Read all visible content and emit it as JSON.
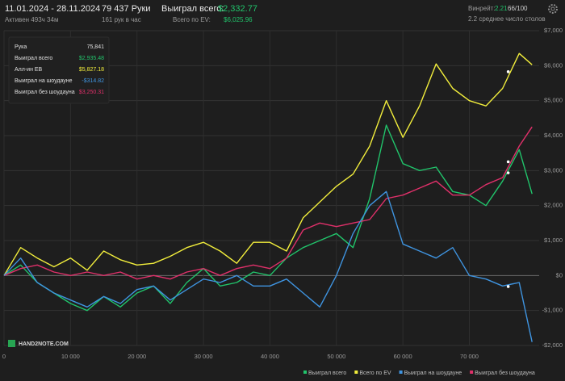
{
  "header": {
    "period": "11.01.2024 - 28.11.2024",
    "active": "Активен 493ч 34м",
    "hands": "79 437 Руки",
    "rate": "161 рук в час",
    "won_label": "Выиграл всего:",
    "won_value": "$2,332.77",
    "ev": "Всего по EV:",
    "ev_value": "$6,025.96",
    "winrate_label": "Винрейт:",
    "winrate_value": "2.21",
    "winrate_extra": "66/100",
    "tables": "2.2 среднее число столов"
  },
  "watermark": "HAND2NOTE.COM",
  "tooltip": {
    "x_label": "Рука",
    "x_value": 75841,
    "x_value_label": "75,841",
    "rows": [
      {
        "label": "Выиграл всего",
        "value": 2935.48,
        "value_label": "$2,935.48",
        "color": "#21c46b"
      },
      {
        "label": "Алл-ин EB",
        "value": 5827.18,
        "value_label": "$5,827.18",
        "color": "#f2ee3c"
      },
      {
        "label": "Выиграл на шоудауне",
        "value": -314.82,
        "value_label": "-$314.82",
        "color": "#3f94e0"
      },
      {
        "label": "Выиграл без шоудауна",
        "value": 3250.31,
        "value_label": "$3,250.31",
        "color": "#e0306a"
      }
    ]
  },
  "chart_data": {
    "type": "line",
    "grid": true,
    "legend": "bottom-right",
    "xlim": [
      0,
      80500
    ],
    "ylim": [
      -2000,
      7000
    ],
    "xticks": [
      0,
      {
        "value": 10000,
        "label": "10 000"
      },
      {
        "value": 20000,
        "label": "20 000"
      },
      {
        "value": 30000,
        "label": "30 000"
      },
      {
        "value": 40000,
        "label": "40 000"
      },
      {
        "value": 50000,
        "label": "50 000"
      },
      {
        "value": 60000,
        "label": "60 000"
      },
      {
        "value": 70000,
        "label": "70 000"
      }
    ],
    "yticks": [
      {
        "value": -2000,
        "label": "-$2,000"
      },
      {
        "value": -1000,
        "label": "-$1,000"
      },
      {
        "value": 0,
        "label": "$0"
      },
      {
        "value": 1000,
        "label": "$1,000"
      },
      {
        "value": 2000,
        "label": "$2,000"
      },
      {
        "value": 3000,
        "label": "$3,000"
      },
      {
        "value": 4000,
        "label": "$4,000"
      },
      {
        "value": 5000,
        "label": "$5,000"
      },
      {
        "value": 6000,
        "label": "$6,000"
      },
      {
        "value": 7000,
        "label": "$7,000"
      }
    ],
    "x": [
      0,
      2500,
      5000,
      7500,
      10000,
      12500,
      15000,
      17500,
      20000,
      22500,
      25000,
      27500,
      30000,
      32500,
      35000,
      37500,
      40000,
      42500,
      45000,
      47500,
      50000,
      52500,
      55000,
      57500,
      60000,
      62500,
      65000,
      67500,
      70000,
      72500,
      75000,
      77500,
      79437
    ],
    "series": [
      {
        "name": "Выиграл всего",
        "color": "#21c46b",
        "values": [
          0,
          300,
          -200,
          -500,
          -800,
          -1000,
          -600,
          -900,
          -500,
          -300,
          -800,
          -200,
          200,
          -300,
          -200,
          100,
          0,
          500,
          800,
          1000,
          1200,
          800,
          2200,
          4300,
          3200,
          3000,
          3100,
          2400,
          2300,
          2000,
          2700,
          3600,
          2332.77
        ]
      },
      {
        "name": "Всего по EV",
        "color": "#f2ee3c",
        "values": [
          0,
          800,
          500,
          250,
          500,
          150,
          700,
          450,
          300,
          350,
          550,
          800,
          950,
          700,
          350,
          950,
          950,
          700,
          1650,
          2100,
          2550,
          2900,
          3700,
          5000,
          3950,
          4850,
          6050,
          5350,
          5000,
          4850,
          5350,
          6350,
          6025.96
        ]
      },
      {
        "name": "Выиграл на шоудауне",
        "color": "#3f94e0",
        "values": [
          0,
          500,
          -200,
          -500,
          -700,
          -900,
          -600,
          -800,
          -400,
          -300,
          -700,
          -400,
          -100,
          -200,
          0,
          -300,
          -300,
          -100,
          -500,
          -900,
          0,
          1200,
          2000,
          2400,
          900,
          700,
          500,
          800,
          0,
          -100,
          -300,
          -200,
          -1900
        ]
      },
      {
        "name": "Выиграл без шоудауна",
        "color": "#e0306a",
        "values": [
          0,
          200,
          300,
          100,
          0,
          100,
          0,
          100,
          -100,
          0,
          -100,
          100,
          200,
          0,
          200,
          300,
          200,
          500,
          1300,
          1500,
          1400,
          1500,
          1600,
          2200,
          2300,
          2500,
          2700,
          2300,
          2300,
          2600,
          2800,
          3700,
          4250
        ]
      }
    ]
  }
}
